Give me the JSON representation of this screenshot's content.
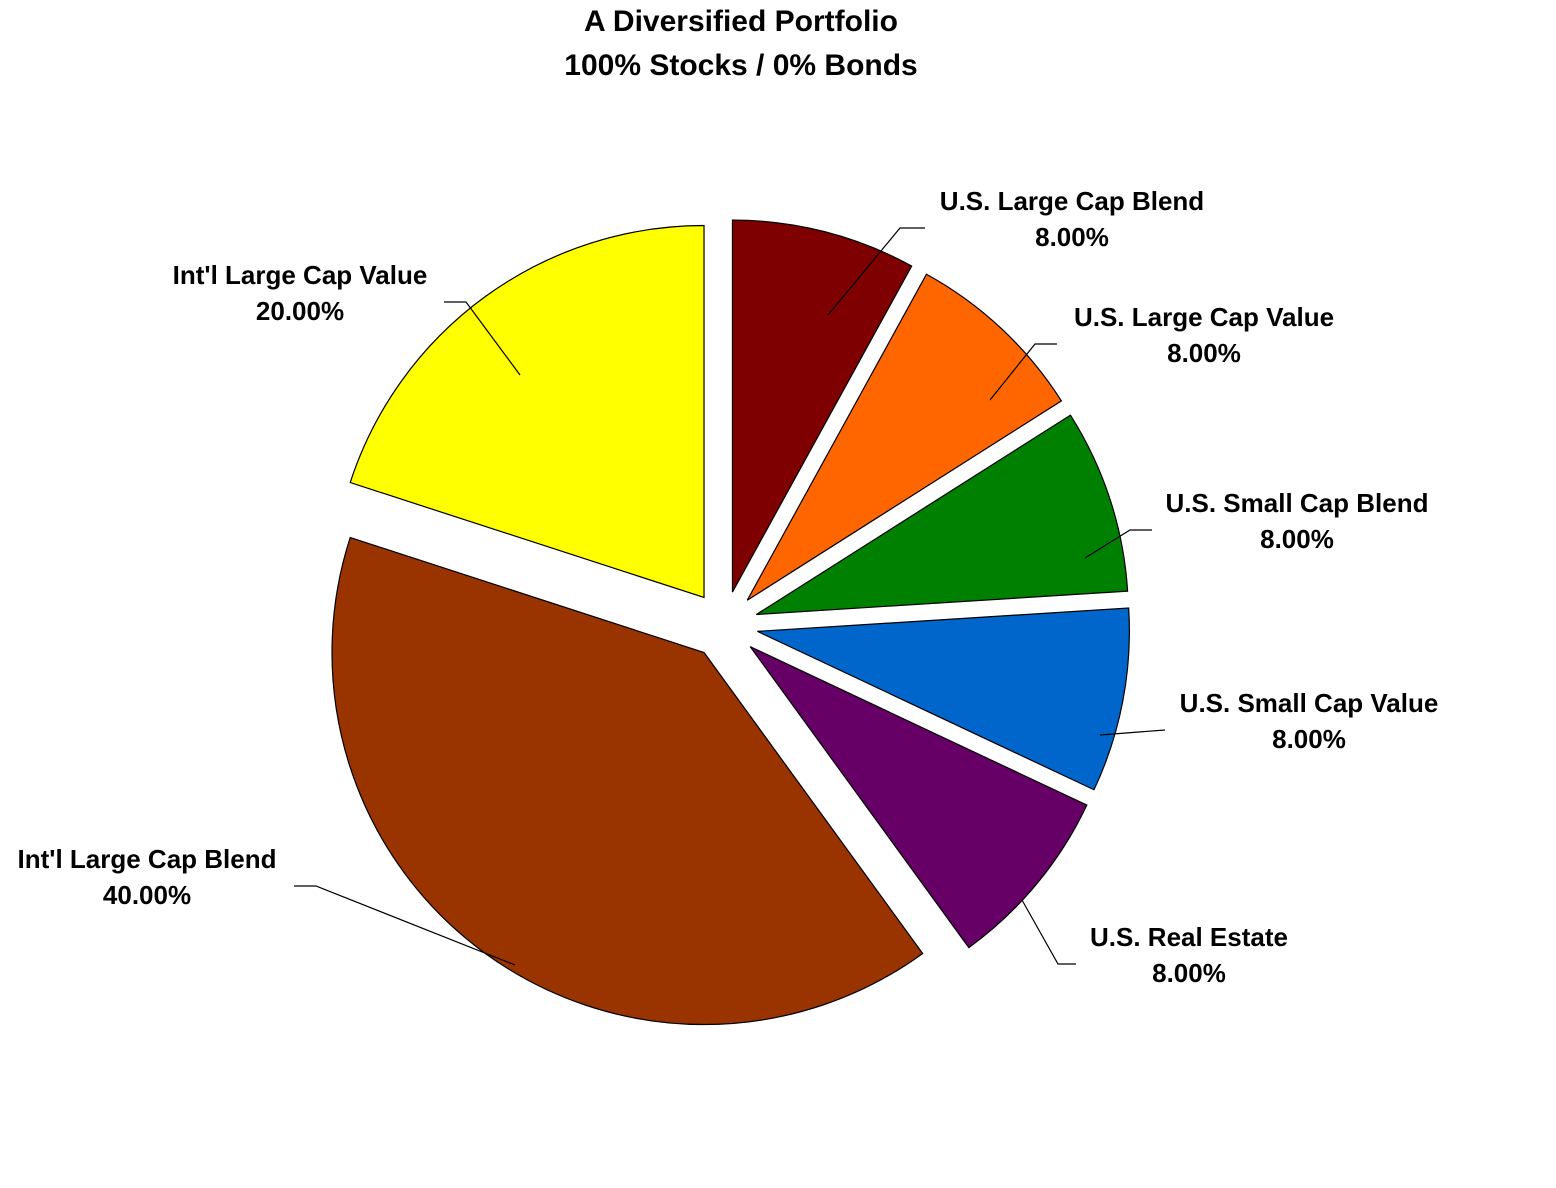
{
  "chart_data": {
    "type": "pie",
    "title": "A Diversified Portfolio",
    "subtitle": "100% Stocks / 0% Bonds",
    "exploded": true,
    "slices": [
      {
        "label": "U.S. Large Cap Blend",
        "value": 8.0,
        "value_label": "8.00%",
        "color": "#7F0000"
      },
      {
        "label": "U.S. Large Cap Value",
        "value": 8.0,
        "value_label": "8.00%",
        "color": "#FF6600"
      },
      {
        "label": "U.S. Small Cap Blend",
        "value": 8.0,
        "value_label": "8.00%",
        "color": "#008000"
      },
      {
        "label": "U.S. Small Cap Value",
        "value": 8.0,
        "value_label": "8.00%",
        "color": "#0066CC"
      },
      {
        "label": "U.S. Real Estate",
        "value": 8.0,
        "value_label": "8.00%",
        "color": "#660066"
      },
      {
        "label": "Int'l Large Cap Blend",
        "value": 40.0,
        "value_label": "40.00%",
        "color": "#993300"
      },
      {
        "label": "Int'l Large Cap Value",
        "value": 20.0,
        "value_label": "20.00%",
        "color": "#FFFF00"
      }
    ]
  }
}
